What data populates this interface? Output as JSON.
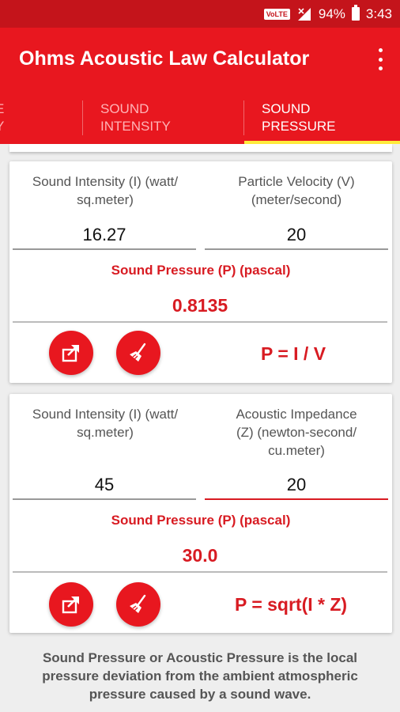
{
  "status_bar": {
    "network_badge": "VoLTE",
    "battery": "94%",
    "time": "3:43"
  },
  "app_bar": {
    "title": "Ohms Acoustic Law Calculator",
    "menu_icon": "more-vert-icon"
  },
  "tabs": [
    {
      "label": "E\nY",
      "selected": false
    },
    {
      "label": "SOUND\nINTENSITY",
      "selected": false
    },
    {
      "label": "SOUND\nPRESSURE",
      "selected": true
    }
  ],
  "colors": {
    "primary": "#e8171f",
    "status_bar": "#c4141b",
    "accent_text": "#d81b22",
    "tab_indicator": "#ffeb3b"
  },
  "card1": {
    "input1": {
      "label": "Sound Intensity (I) (watt/\nsq.meter)",
      "value": "16.27"
    },
    "input2": {
      "label": "Particle Velocity (V)\n(meter/second)",
      "value": "20"
    },
    "result_label": "Sound Pressure (P) (pascal)",
    "result_value": "0.8135",
    "formula": "P = I / V"
  },
  "card2": {
    "input1": {
      "label": "Sound Intensity (I) (watt/\nsq.meter)",
      "value": "45"
    },
    "input2": {
      "label": "Acoustic Impedance\n(Z) (newton-second/\ncu.meter)",
      "value": "20"
    },
    "result_label": "Sound Pressure (P) (pascal)",
    "result_value": "30.0",
    "formula": "P = sqrt(I * Z)"
  },
  "footer_text": "Sound Pressure or Acoustic Pressure is the local pressure deviation from the ambient atmospheric pressure caused by a sound wave."
}
